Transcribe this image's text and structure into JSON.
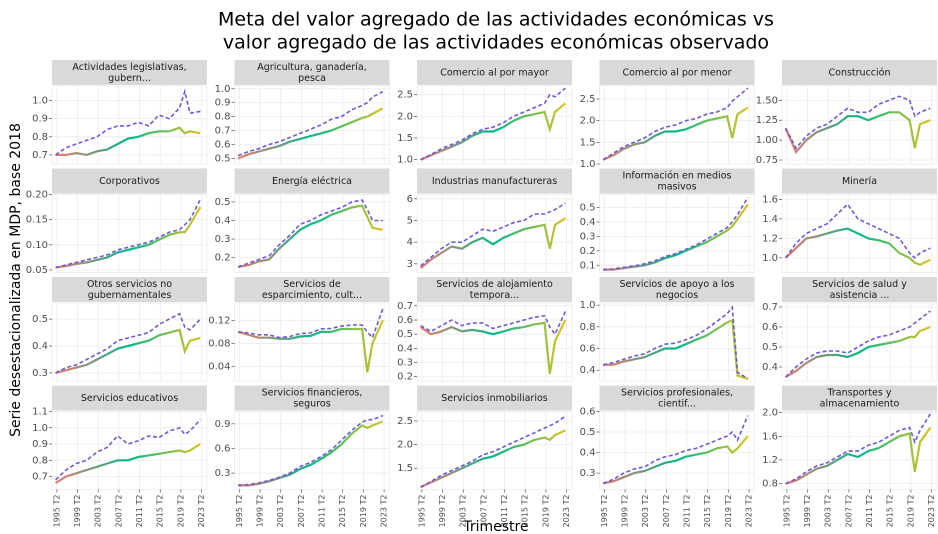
{
  "chart_data": {
    "type": "facet_line",
    "title": [
      "Meta del valor agregado de las actividades económicas vs",
      "valor agregado de las actividades económicas observado"
    ],
    "xlabel": "Trimestre",
    "ylabel": "Serie desestacionalizada en MDP, base 2018",
    "observed_colors": [
      "#f8766d",
      "#00ba8a",
      "#f0c419"
    ],
    "target_color": "#6b5bd6",
    "target_dashed": true,
    "grid": true,
    "x": [
      1995,
      1997,
      1999,
      2001,
      2003,
      2005,
      2007,
      2009,
      2011,
      2013,
      2015,
      2017,
      2019,
      2020,
      2021,
      2023
    ],
    "xlim": [
      1994.3,
      2024.3
    ],
    "xticks": [
      {
        "value": 1995.25,
        "label": "1995 T2"
      },
      {
        "value": 1999.25,
        "label": "1999 T2"
      },
      {
        "value": 2003.25,
        "label": "2003 T2"
      },
      {
        "value": 2007.25,
        "label": "2007 T2"
      },
      {
        "value": 2011.25,
        "label": "2011 T2"
      },
      {
        "value": 2015.25,
        "label": "2015 T2"
      },
      {
        "value": 2019.25,
        "label": "2019 T2"
      },
      {
        "value": 2023.25,
        "label": "2023 T2"
      }
    ],
    "panels": [
      {
        "title": [
          "Actividades legislativas,",
          "gubern..."
        ],
        "ylim": [
          0.65,
          1.08
        ],
        "yticks": [
          0.7,
          0.8,
          0.9,
          {
            "value": 1.0,
            "label": "1.0"
          }
        ],
        "observed": [
          0.7,
          0.7,
          0.71,
          0.7,
          0.72,
          0.73,
          0.76,
          0.79,
          0.8,
          0.82,
          0.83,
          0.83,
          0.85,
          0.82,
          0.83,
          0.82
        ],
        "target": [
          0.7,
          0.74,
          0.76,
          0.78,
          0.8,
          0.84,
          0.86,
          0.86,
          0.88,
          0.86,
          0.92,
          0.9,
          0.96,
          1.05,
          0.93,
          0.94
        ]
      },
      {
        "title": [
          "Agricultura, ganadería,",
          "pesca"
        ],
        "ylim": [
          0.46,
          1.02
        ],
        "yticks": [
          0.5,
          0.6,
          0.7,
          0.8,
          0.9,
          {
            "value": 1.0,
            "label": "1.0"
          }
        ],
        "observed": [
          0.5,
          0.53,
          0.55,
          0.57,
          0.59,
          0.62,
          0.64,
          0.66,
          0.68,
          0.7,
          0.73,
          0.76,
          0.79,
          0.8,
          0.82,
          0.86
        ],
        "target": [
          0.52,
          0.55,
          0.57,
          0.6,
          0.62,
          0.65,
          0.68,
          0.71,
          0.74,
          0.78,
          0.8,
          0.85,
          0.88,
          0.9,
          0.94,
          0.98
        ]
      },
      {
        "title": [
          "Comercio al por mayor"
        ],
        "ylim": [
          0.9,
          2.7
        ],
        "yticks": [
          {
            "value": 1.0,
            "label": "1.0"
          },
          1.5,
          {
            "value": 2.0,
            "label": "2.0"
          },
          2.5
        ],
        "observed": [
          1.0,
          1.1,
          1.2,
          1.3,
          1.4,
          1.55,
          1.65,
          1.65,
          1.75,
          1.9,
          2.0,
          2.05,
          2.1,
          1.7,
          2.1,
          2.3
        ],
        "target": [
          1.0,
          1.12,
          1.25,
          1.35,
          1.45,
          1.6,
          1.7,
          1.75,
          1.85,
          2.0,
          2.1,
          2.2,
          2.3,
          2.5,
          2.45,
          2.65
        ]
      },
      {
        "title": [
          "Comercio al por menor"
        ],
        "ylim": [
          1.0,
          2.8
        ],
        "yticks": [
          {
            "value": 1.0,
            "label": "1.0"
          },
          1.5,
          {
            "value": 2.0,
            "label": "2.0"
          },
          2.5
        ],
        "observed": [
          1.1,
          1.2,
          1.35,
          1.45,
          1.5,
          1.65,
          1.75,
          1.75,
          1.8,
          1.9,
          2.0,
          2.05,
          2.1,
          1.6,
          2.15,
          2.3
        ],
        "target": [
          1.1,
          1.25,
          1.4,
          1.5,
          1.6,
          1.75,
          1.85,
          1.9,
          2.0,
          2.05,
          2.15,
          2.2,
          2.3,
          2.45,
          2.55,
          2.75
        ]
      },
      {
        "title": [
          "Construcción"
        ],
        "ylim": [
          0.7,
          1.68
        ],
        "yticks": [
          0.75,
          {
            "value": 1.0,
            "label": "1.00"
          },
          1.25,
          {
            "value": 1.5,
            "label": "1.50"
          }
        ],
        "observed": [
          1.15,
          0.85,
          1.0,
          1.1,
          1.15,
          1.2,
          1.3,
          1.3,
          1.25,
          1.3,
          1.35,
          1.35,
          1.25,
          0.9,
          1.2,
          1.25
        ],
        "target": [
          1.15,
          0.9,
          1.05,
          1.15,
          1.2,
          1.3,
          1.4,
          1.35,
          1.35,
          1.45,
          1.5,
          1.55,
          1.5,
          1.3,
          1.35,
          1.4
        ]
      },
      {
        "title": [
          "Corporativos"
        ],
        "ylim": [
          0.045,
          0.2
        ],
        "yticks": [
          0.05,
          {
            "value": 0.1,
            "label": "0.10"
          },
          0.15,
          {
            "value": 0.2,
            "label": "0.20"
          }
        ],
        "observed": [
          0.055,
          0.058,
          0.062,
          0.065,
          0.07,
          0.075,
          0.085,
          0.09,
          0.095,
          0.1,
          0.11,
          0.12,
          0.125,
          0.125,
          0.14,
          0.175
        ],
        "target": [
          0.055,
          0.06,
          0.065,
          0.07,
          0.075,
          0.08,
          0.09,
          0.095,
          0.1,
          0.105,
          0.115,
          0.125,
          0.13,
          0.14,
          0.15,
          0.19
        ]
      },
      {
        "title": [
          "Energía eléctrica"
        ],
        "ylim": [
          0.12,
          0.54
        ],
        "yticks": [
          0.2,
          0.3,
          0.4,
          0.5
        ],
        "observed": [
          0.15,
          0.16,
          0.18,
          0.19,
          0.25,
          0.3,
          0.35,
          0.38,
          0.4,
          0.43,
          0.45,
          0.47,
          0.48,
          0.42,
          0.36,
          0.35
        ],
        "target": [
          0.15,
          0.17,
          0.19,
          0.21,
          0.27,
          0.32,
          0.38,
          0.4,
          0.43,
          0.45,
          0.47,
          0.5,
          0.51,
          0.46,
          0.4,
          0.4
        ]
      },
      {
        "title": [
          "Industrias manufactureras"
        ],
        "ylim": [
          2.6,
          6.2
        ],
        "yticks": [
          3,
          4,
          5,
          6
        ],
        "observed": [
          2.8,
          3.2,
          3.5,
          3.8,
          3.7,
          4.0,
          4.2,
          3.9,
          4.2,
          4.4,
          4.6,
          4.7,
          4.8,
          3.7,
          4.8,
          5.1
        ],
        "target": [
          2.9,
          3.3,
          3.7,
          4.0,
          4.0,
          4.3,
          4.6,
          4.5,
          4.7,
          4.9,
          5.0,
          5.3,
          5.3,
          5.4,
          5.5,
          5.8
        ]
      },
      {
        "title": [
          "Información en medios",
          "masivos"
        ],
        "ylim": [
          0.05,
          0.59
        ],
        "yticks": [
          0.1,
          0.2,
          0.3,
          0.4,
          0.5
        ],
        "observed": [
          0.07,
          0.07,
          0.08,
          0.09,
          0.1,
          0.12,
          0.15,
          0.17,
          0.2,
          0.23,
          0.26,
          0.3,
          0.34,
          0.37,
          0.42,
          0.52
        ],
        "target": [
          0.07,
          0.075,
          0.085,
          0.095,
          0.11,
          0.13,
          0.16,
          0.18,
          0.21,
          0.24,
          0.28,
          0.32,
          0.36,
          0.4,
          0.45,
          0.57
        ]
      },
      {
        "title": [
          "Minería"
        ],
        "ylim": [
          0.85,
          1.65
        ],
        "yticks": [
          {
            "value": 1.0,
            "label": "1.0"
          },
          1.2,
          1.4,
          1.6
        ],
        "observed": [
          1.0,
          1.1,
          1.2,
          1.22,
          1.25,
          1.28,
          1.3,
          1.25,
          1.2,
          1.18,
          1.15,
          1.05,
          1.0,
          0.95,
          0.93,
          0.98
        ],
        "target": [
          1.0,
          1.15,
          1.25,
          1.3,
          1.35,
          1.45,
          1.55,
          1.4,
          1.35,
          1.3,
          1.25,
          1.2,
          1.05,
          1.0,
          1.05,
          1.1
        ]
      },
      {
        "title": [
          "Otros servicios no",
          "gubernamentales"
        ],
        "ylim": [
          0.27,
          0.56
        ],
        "yticks": [
          0.3,
          0.4,
          0.5
        ],
        "observed": [
          0.3,
          0.31,
          0.32,
          0.33,
          0.35,
          0.37,
          0.39,
          0.4,
          0.41,
          0.42,
          0.44,
          0.45,
          0.46,
          0.38,
          0.42,
          0.43
        ],
        "target": [
          0.3,
          0.32,
          0.33,
          0.35,
          0.37,
          0.39,
          0.42,
          0.43,
          0.44,
          0.45,
          0.48,
          0.5,
          0.52,
          0.47,
          0.46,
          0.5
        ]
      },
      {
        "title": [
          "Servicios de",
          "esparcimiento, cult..."
        ],
        "ylim": [
          0.015,
          0.15
        ],
        "yticks": [
          0.04,
          0.08,
          0.12
        ],
        "observed": [
          0.1,
          0.095,
          0.09,
          0.09,
          0.088,
          0.088,
          0.092,
          0.093,
          0.1,
          0.1,
          0.105,
          0.105,
          0.105,
          0.03,
          0.08,
          0.12
        ],
        "target": [
          0.1,
          0.098,
          0.095,
          0.095,
          0.09,
          0.092,
          0.097,
          0.098,
          0.105,
          0.106,
          0.11,
          0.112,
          0.112,
          0.1,
          0.09,
          0.14
        ]
      },
      {
        "title": [
          "Servicios de alojamiento",
          "tempora..."
        ],
        "ylim": [
          0.17,
          0.72
        ],
        "yticks": [
          0.2,
          0.3,
          0.4,
          0.5,
          0.6,
          0.7
        ],
        "observed": [
          0.55,
          0.5,
          0.52,
          0.55,
          0.52,
          0.53,
          0.52,
          0.5,
          0.52,
          0.54,
          0.55,
          0.57,
          0.58,
          0.22,
          0.45,
          0.6
        ],
        "target": [
          0.56,
          0.52,
          0.56,
          0.6,
          0.56,
          0.58,
          0.58,
          0.54,
          0.56,
          0.58,
          0.6,
          0.62,
          0.63,
          0.55,
          0.5,
          0.66
        ]
      },
      {
        "title": [
          "Servicios de apoyo a los",
          "negocios"
        ],
        "ylim": [
          0.3,
          1.02
        ],
        "yticks": [
          0.4,
          0.6,
          0.8,
          {
            "value": 1.0,
            "label": "1.0"
          }
        ],
        "observed": [
          0.45,
          0.45,
          0.48,
          0.5,
          0.52,
          0.56,
          0.6,
          0.6,
          0.64,
          0.68,
          0.72,
          0.78,
          0.84,
          0.86,
          0.35,
          0.32
        ],
        "target": [
          0.45,
          0.47,
          0.5,
          0.53,
          0.55,
          0.6,
          0.64,
          0.65,
          0.68,
          0.72,
          0.78,
          0.85,
          0.92,
          0.98,
          0.38,
          0.32
        ]
      },
      {
        "title": [
          "Servicios de salud y",
          "asistencia ..."
        ],
        "ylim": [
          0.33,
          0.72
        ],
        "yticks": [
          0.4,
          0.5,
          0.6,
          0.7
        ],
        "observed": [
          0.35,
          0.38,
          0.42,
          0.45,
          0.46,
          0.46,
          0.45,
          0.47,
          0.5,
          0.51,
          0.52,
          0.53,
          0.55,
          0.55,
          0.58,
          0.6
        ],
        "target": [
          0.35,
          0.4,
          0.44,
          0.47,
          0.48,
          0.48,
          0.47,
          0.5,
          0.53,
          0.55,
          0.56,
          0.58,
          0.6,
          0.62,
          0.64,
          0.68
        ]
      },
      {
        "title": [
          "Servicios educativos"
        ],
        "ylim": [
          0.62,
          1.1
        ],
        "yticks": [
          0.7,
          0.8,
          0.9,
          {
            "value": 1.0,
            "label": "1.0"
          },
          1.1
        ],
        "observed": [
          0.66,
          0.7,
          0.72,
          0.74,
          0.76,
          0.78,
          0.8,
          0.8,
          0.82,
          0.83,
          0.84,
          0.85,
          0.86,
          0.85,
          0.86,
          0.9
        ],
        "target": [
          0.68,
          0.74,
          0.78,
          0.8,
          0.85,
          0.88,
          0.95,
          0.9,
          0.92,
          0.95,
          0.94,
          0.98,
          1.0,
          0.96,
          0.98,
          1.05
        ]
      },
      {
        "title": [
          "Servicios financieros,",
          "seguros"
        ],
        "ylim": [
          0.1,
          1.05
        ],
        "yticks": [
          0.3,
          0.6,
          0.9
        ],
        "observed": [
          0.15,
          0.15,
          0.17,
          0.2,
          0.24,
          0.28,
          0.35,
          0.4,
          0.47,
          0.55,
          0.65,
          0.78,
          0.88,
          0.85,
          0.88,
          0.93
        ],
        "target": [
          0.15,
          0.16,
          0.18,
          0.21,
          0.25,
          0.3,
          0.38,
          0.43,
          0.5,
          0.58,
          0.7,
          0.82,
          0.92,
          0.95,
          0.95,
          1.0
        ]
      },
      {
        "title": [
          "Servicios inmobiliarios"
        ],
        "ylim": [
          1.05,
          2.7
        ],
        "yticks": [
          1.5,
          {
            "value": 2.0,
            "label": "2.0"
          },
          2.5
        ],
        "observed": [
          1.1,
          1.2,
          1.3,
          1.4,
          1.5,
          1.6,
          1.7,
          1.75,
          1.85,
          1.95,
          2.0,
          2.1,
          2.15,
          2.1,
          2.2,
          2.3
        ],
        "target": [
          1.1,
          1.22,
          1.35,
          1.45,
          1.55,
          1.65,
          1.78,
          1.85,
          1.95,
          2.05,
          2.15,
          2.25,
          2.35,
          2.4,
          2.45,
          2.6
        ]
      },
      {
        "title": [
          "Servicios profesionales,",
          "cientif..."
        ],
        "ylim": [
          0.22,
          0.6
        ],
        "yticks": [
          0.3,
          0.4,
          0.5,
          0.6
        ],
        "observed": [
          0.25,
          0.26,
          0.28,
          0.3,
          0.31,
          0.33,
          0.35,
          0.36,
          0.38,
          0.39,
          0.4,
          0.42,
          0.43,
          0.4,
          0.42,
          0.48
        ],
        "target": [
          0.25,
          0.27,
          0.3,
          0.32,
          0.33,
          0.36,
          0.38,
          0.39,
          0.41,
          0.42,
          0.44,
          0.46,
          0.48,
          0.5,
          0.46,
          0.58
        ]
      },
      {
        "title": [
          "Transportes y",
          "almacenamiento"
        ],
        "ylim": [
          0.7,
          2.02
        ],
        "yticks": [
          0.8,
          1.2,
          1.6,
          {
            "value": 2.0,
            "label": "2.0"
          }
        ],
        "observed": [
          0.8,
          0.85,
          0.95,
          1.05,
          1.1,
          1.2,
          1.3,
          1.25,
          1.35,
          1.4,
          1.5,
          1.6,
          1.65,
          1.0,
          1.5,
          1.75
        ],
        "target": [
          0.8,
          0.88,
          1.0,
          1.1,
          1.15,
          1.25,
          1.35,
          1.35,
          1.45,
          1.5,
          1.6,
          1.7,
          1.75,
          1.5,
          1.7,
          1.98
        ]
      }
    ]
  }
}
